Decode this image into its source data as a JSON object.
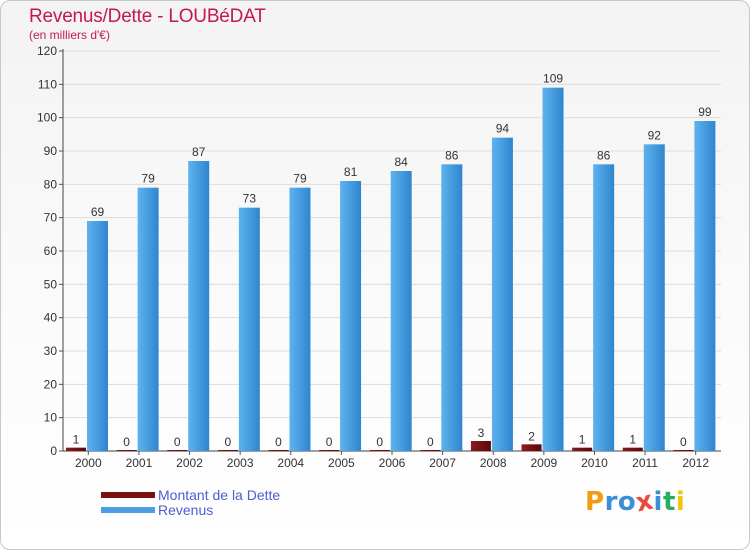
{
  "header": {
    "title": "Revenus/Dette - LOUBéDAT",
    "subtitle": "(en milliers d'€)"
  },
  "chart_data": {
    "type": "bar",
    "title": "Revenus/Dette - LOUBéDAT",
    "subtitle": "(en milliers d'€)",
    "categories": [
      "2000",
      "2001",
      "2002",
      "2003",
      "2004",
      "2005",
      "2006",
      "2007",
      "2008",
      "2009",
      "2010",
      "2011",
      "2012"
    ],
    "series": [
      {
        "name": "Montant de la Dette",
        "color": "#7a1010",
        "values": [
          1,
          0,
          0,
          0,
          0,
          0,
          0,
          0,
          3,
          2,
          1,
          1,
          0
        ]
      },
      {
        "name": "Revenus",
        "color": "#4aa0e2",
        "values": [
          69,
          79,
          87,
          73,
          79,
          81,
          84,
          86,
          94,
          109,
          86,
          92,
          99
        ]
      }
    ],
    "ylim": [
      0,
      120
    ],
    "yticks": [
      0,
      10,
      20,
      30,
      40,
      50,
      60,
      70,
      80,
      90,
      100,
      110,
      120
    ],
    "grid": true,
    "legend": "bottom-left"
  },
  "legend": {
    "items": [
      {
        "label": "Montant de la Dette",
        "color": "#7a1010"
      },
      {
        "label": "Revenus",
        "color": "#4aa0e2"
      }
    ]
  },
  "branding": {
    "logo_letters": [
      "P",
      "r",
      "o",
      "x",
      "i",
      "t",
      "i"
    ],
    "logo_colors": [
      "#f39c12",
      "#3a8fd6",
      "#3a8fd6",
      "#e74c3c",
      "#3a8fd6",
      "#27ae60",
      "#f1c40f"
    ]
  }
}
